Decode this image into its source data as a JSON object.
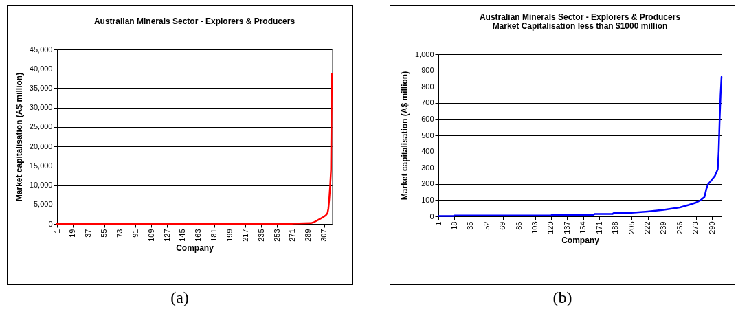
{
  "chart_data": [
    {
      "type": "line",
      "title": "Australian Minerals Sector - Explorers & Producers",
      "xlabel": "Company",
      "ylabel": "Market capitalisation (A$ million)",
      "annotations": [
        "(a)"
      ],
      "xlim": [
        1,
        316
      ],
      "xticks": [
        1,
        19,
        37,
        55,
        73,
        91,
        109,
        127,
        145,
        163,
        181,
        199,
        217,
        235,
        253,
        271,
        289,
        307
      ],
      "ylim": [
        0,
        45000
      ],
      "yticks": [
        0,
        {
          "value": 5000,
          "label": "5,000"
        },
        {
          "value": 10000,
          "label": "10,000"
        },
        {
          "value": 15000,
          "label": "15,000"
        },
        {
          "value": 20000,
          "label": "20,000"
        },
        {
          "value": 25000,
          "label": "25,000"
        },
        {
          "value": 30000,
          "label": "30,000"
        },
        {
          "value": 35000,
          "label": "35,000"
        },
        {
          "value": 40000,
          "label": "40,000"
        },
        {
          "value": 45000,
          "label": "45,000"
        }
      ],
      "grid": "y",
      "series": [
        {
          "color": "#ff0000",
          "x": [
            1,
            270,
            271,
            292,
            295,
            300,
            305,
            309,
            311,
            312,
            313,
            314,
            315,
            316
          ],
          "values": [
            0,
            0,
            100,
            200,
            400,
            1000,
            1600,
            2200,
            2800,
            4000,
            6500,
            9800,
            14000,
            38700
          ]
        }
      ]
    },
    {
      "type": "line",
      "title": "Australian Minerals Sector - Explorers & Producers",
      "subtitle": "Market Capitalisation less than $1000 million",
      "xlabel": "Company",
      "ylabel": "Market capitalisation (A$ million)",
      "annotations": [
        "(b)"
      ],
      "xlim": [
        1,
        300
      ],
      "xticks": [
        1,
        18,
        35,
        52,
        69,
        86,
        103,
        120,
        137,
        154,
        171,
        188,
        205,
        222,
        239,
        256,
        273,
        290
      ],
      "ylim": [
        0,
        1000
      ],
      "yticks": [
        0,
        100,
        200,
        300,
        400,
        500,
        600,
        700,
        800,
        900,
        {
          "value": 1000,
          "label": "1,000"
        }
      ],
      "grid": "y",
      "series": [
        {
          "color": "#0000ff",
          "x": [
            1,
            17,
            18,
            120,
            121,
            165,
            166,
            185,
            186,
            205,
            222,
            239,
            250,
            256,
            265,
            273,
            278,
            282,
            284,
            286,
            289,
            293,
            296,
            297,
            298,
            299,
            300
          ],
          "values": [
            2,
            2,
            5,
            5,
            10,
            10,
            15,
            15,
            20,
            22,
            30,
            40,
            50,
            55,
            70,
            85,
            100,
            120,
            170,
            200,
            220,
            250,
            290,
            400,
            600,
            750,
            860
          ]
        }
      ]
    }
  ]
}
